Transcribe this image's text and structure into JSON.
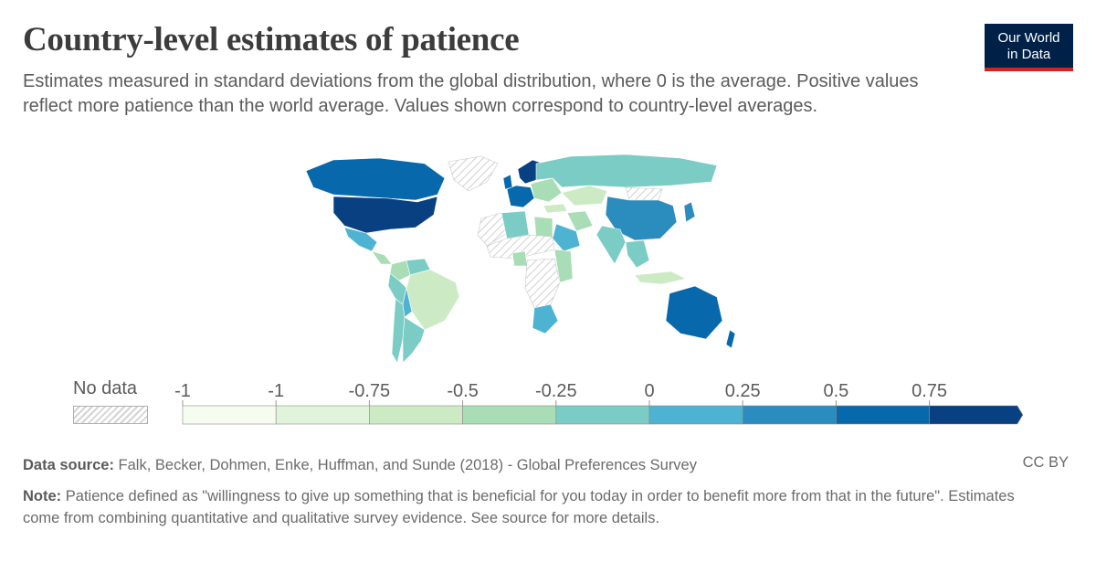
{
  "header": {
    "title": "Country-level estimates of patience",
    "subtitle": "Estimates measured in standard deviations from the global distribution, where 0 is the average. Positive values reflect more patience than the world average. Values shown correspond to country-level averages."
  },
  "logo": {
    "line1": "Our World",
    "line2": "in Data"
  },
  "legend": {
    "no_data_label": "No data",
    "tick_labels": [
      "-1",
      "-1",
      "-0.75",
      "-0.5",
      "-0.25",
      "0",
      "0.25",
      "0.5",
      "0.75"
    ],
    "bin_colors": [
      "#f7fcf0",
      "#e0f3db",
      "#ccebc5",
      "#a8ddb5",
      "#7bccc4",
      "#4eb3d3",
      "#2b8cbe",
      "#0868ac",
      "#084081"
    ],
    "no_data_pattern": "hatched"
  },
  "footer": {
    "source_label": "Data source:",
    "source_text": "Falk, Becker, Dohmen, Enke, Huffman, and Sunde (2018) - Global Preferences Survey",
    "license": "CC BY",
    "note_label": "Note:",
    "note_text": "Patience defined as \"willingness to give up something that is beneficial for you today in order to benefit more from that in the future\". Estimates come from combining quantitative and qualitative survey evidence. See source for more details."
  },
  "map": {
    "regions": [
      {
        "name": "Canada",
        "value": 0.6
      },
      {
        "name": "United States",
        "value": 1.0
      },
      {
        "name": "Mexico",
        "value": 0.1
      },
      {
        "name": "Central America",
        "value": -0.4
      },
      {
        "name": "Colombia",
        "value": -0.3
      },
      {
        "name": "Venezuela",
        "value": -0.2
      },
      {
        "name": "Brazil",
        "value": -0.6
      },
      {
        "name": "Peru",
        "value": -0.1
      },
      {
        "name": "Bolivia",
        "value": 0.1
      },
      {
        "name": "Chile",
        "value": -0.2
      },
      {
        "name": "Argentina",
        "value": -0.15
      },
      {
        "name": "Greenland",
        "value": null
      },
      {
        "name": "United Kingdom",
        "value": 0.7
      },
      {
        "name": "Scandinavia",
        "value": 0.8
      },
      {
        "name": "Western Europe",
        "value": 0.6
      },
      {
        "name": "Eastern Europe",
        "value": -0.3
      },
      {
        "name": "Russia",
        "value": -0.2
      },
      {
        "name": "Kazakhstan",
        "value": -0.6
      },
      {
        "name": "Mongolia",
        "value": null
      },
      {
        "name": "China",
        "value": 0.35
      },
      {
        "name": "Japan",
        "value": 0.4
      },
      {
        "name": "India",
        "value": -0.1
      },
      {
        "name": "Iran",
        "value": -0.4
      },
      {
        "name": "Saudi Arabia",
        "value": 0.1
      },
      {
        "name": "Turkey",
        "value": -0.6
      },
      {
        "name": "North Africa",
        "value": null
      },
      {
        "name": "Algeria",
        "value": -0.2
      },
      {
        "name": "Egypt",
        "value": -0.3
      },
      {
        "name": "Sahel",
        "value": null
      },
      {
        "name": "Nigeria",
        "value": -0.5
      },
      {
        "name": "Central Africa",
        "value": null
      },
      {
        "name": "East Africa",
        "value": -0.4
      },
      {
        "name": "South Africa",
        "value": 0.2
      },
      {
        "name": "Southeast Asia",
        "value": -0.1
      },
      {
        "name": "Indonesia",
        "value": -0.6
      },
      {
        "name": "Australia",
        "value": 0.7
      },
      {
        "name": "New Zealand",
        "value": 0.5
      }
    ]
  }
}
